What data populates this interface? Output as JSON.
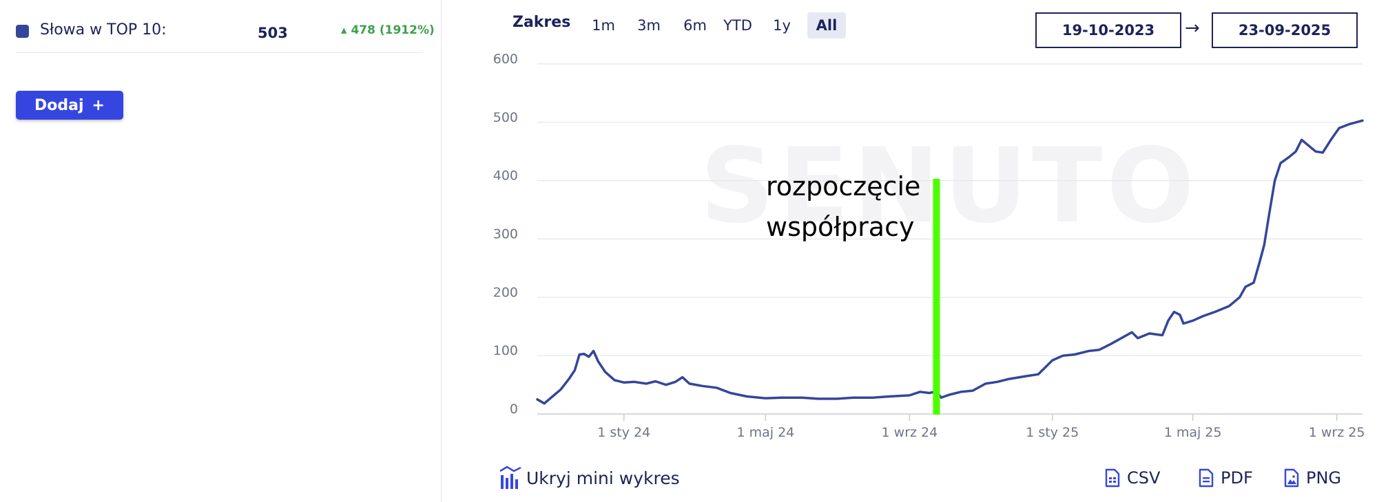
{
  "sidebar": {
    "metric_label": "Słowa w TOP 10:",
    "metric_value": "503",
    "metric_change": "▴ 478 (1912%)",
    "legend_color": "#34469a",
    "add_button_label": "Dodaj",
    "add_button_icon": "plus-icon"
  },
  "range": {
    "label": "Zakres",
    "options": [
      "1m",
      "3m",
      "6m",
      "YTD",
      "1y",
      "All"
    ],
    "active": "All",
    "date_from": "19-10-2023",
    "arrow": "→",
    "date_to": "23-09-2025"
  },
  "toolbar": {
    "mini_chart_label": "Ukryj mini wykres",
    "mini_chart_icon": "bar-chart-icon",
    "csv_label": "CSV",
    "pdf_label": "PDF",
    "png_label": "PNG",
    "file_icon": "file-icon"
  },
  "chart_data": {
    "type": "line",
    "title": "",
    "xlabel": "",
    "ylabel": "",
    "ylim": [
      0,
      600
    ],
    "yticks": [
      0,
      100,
      200,
      300,
      400,
      500,
      600
    ],
    "xlim": [
      "2023-10-19",
      "2025-09-23"
    ],
    "xticks": [
      {
        "date": "2024-01-01",
        "label": "1 sty 24"
      },
      {
        "date": "2024-05-01",
        "label": "1 maj 24"
      },
      {
        "date": "2024-09-01",
        "label": "1 wrz 24"
      },
      {
        "date": "2025-01-01",
        "label": "1 sty 25"
      },
      {
        "date": "2025-05-01",
        "label": "1 maj 25"
      },
      {
        "date": "2025-09-01",
        "label": "1 wrz 25"
      }
    ],
    "grid": true,
    "line_color": "#34469a",
    "series": [
      {
        "points": [
          [
            "2023-10-19",
            25
          ],
          [
            "2023-10-25",
            18
          ],
          [
            "2023-11-01",
            30
          ],
          [
            "2023-11-08",
            42
          ],
          [
            "2023-11-15",
            60
          ],
          [
            "2023-11-20",
            75
          ],
          [
            "2023-11-24",
            102
          ],
          [
            "2023-11-28",
            103
          ],
          [
            "2023-12-02",
            98
          ],
          [
            "2023-12-06",
            108
          ],
          [
            "2023-12-10",
            90
          ],
          [
            "2023-12-16",
            72
          ],
          [
            "2023-12-24",
            58
          ],
          [
            "2024-01-01",
            54
          ],
          [
            "2024-01-10",
            55
          ],
          [
            "2024-01-20",
            52
          ],
          [
            "2024-01-28",
            56
          ],
          [
            "2024-02-06",
            50
          ],
          [
            "2024-02-14",
            55
          ],
          [
            "2024-02-20",
            63
          ],
          [
            "2024-02-26",
            52
          ],
          [
            "2024-03-08",
            48
          ],
          [
            "2024-03-20",
            45
          ],
          [
            "2024-04-01",
            36
          ],
          [
            "2024-04-15",
            30
          ],
          [
            "2024-05-01",
            27
          ],
          [
            "2024-05-15",
            28
          ],
          [
            "2024-06-01",
            28
          ],
          [
            "2024-06-15",
            26
          ],
          [
            "2024-07-01",
            26
          ],
          [
            "2024-07-15",
            28
          ],
          [
            "2024-08-01",
            28
          ],
          [
            "2024-08-15",
            30
          ],
          [
            "2024-09-01",
            32
          ],
          [
            "2024-09-10",
            38
          ],
          [
            "2024-09-18",
            36
          ],
          [
            "2024-09-24",
            39
          ],
          [
            "2024-09-28",
            28
          ],
          [
            "2024-10-05",
            33
          ],
          [
            "2024-10-15",
            38
          ],
          [
            "2024-10-25",
            40
          ],
          [
            "2024-11-05",
            52
          ],
          [
            "2024-11-15",
            55
          ],
          [
            "2024-11-25",
            60
          ],
          [
            "2024-12-10",
            65
          ],
          [
            "2024-12-20",
            68
          ],
          [
            "2025-01-01",
            92
          ],
          [
            "2025-01-10",
            100
          ],
          [
            "2025-01-20",
            102
          ],
          [
            "2025-02-01",
            108
          ],
          [
            "2025-02-10",
            110
          ],
          [
            "2025-02-20",
            120
          ],
          [
            "2025-03-01",
            130
          ],
          [
            "2025-03-10",
            140
          ],
          [
            "2025-03-15",
            130
          ],
          [
            "2025-03-25",
            138
          ],
          [
            "2025-04-05",
            135
          ],
          [
            "2025-04-10",
            160
          ],
          [
            "2025-04-15",
            175
          ],
          [
            "2025-04-20",
            170
          ],
          [
            "2025-04-23",
            155
          ],
          [
            "2025-05-01",
            160
          ],
          [
            "2025-05-10",
            168
          ],
          [
            "2025-05-20",
            175
          ],
          [
            "2025-06-01",
            185
          ],
          [
            "2025-06-10",
            200
          ],
          [
            "2025-06-15",
            218
          ],
          [
            "2025-06-22",
            225
          ],
          [
            "2025-06-27",
            260
          ],
          [
            "2025-07-01",
            290
          ],
          [
            "2025-07-05",
            340
          ],
          [
            "2025-07-10",
            400
          ],
          [
            "2025-07-15",
            430
          ],
          [
            "2025-07-22",
            440
          ],
          [
            "2025-07-28",
            450
          ],
          [
            "2025-08-02",
            470
          ],
          [
            "2025-08-08",
            460
          ],
          [
            "2025-08-14",
            450
          ],
          [
            "2025-08-20",
            448
          ],
          [
            "2025-08-27",
            470
          ],
          [
            "2025-09-03",
            490
          ],
          [
            "2025-09-12",
            497
          ],
          [
            "2025-09-23",
            503
          ]
        ]
      }
    ],
    "annotation": {
      "date": "2024-09-24",
      "color": "#4cff00",
      "text_lines": [
        "rozpoczęcie",
        "współpracy"
      ]
    },
    "watermark": "SENUTO"
  }
}
